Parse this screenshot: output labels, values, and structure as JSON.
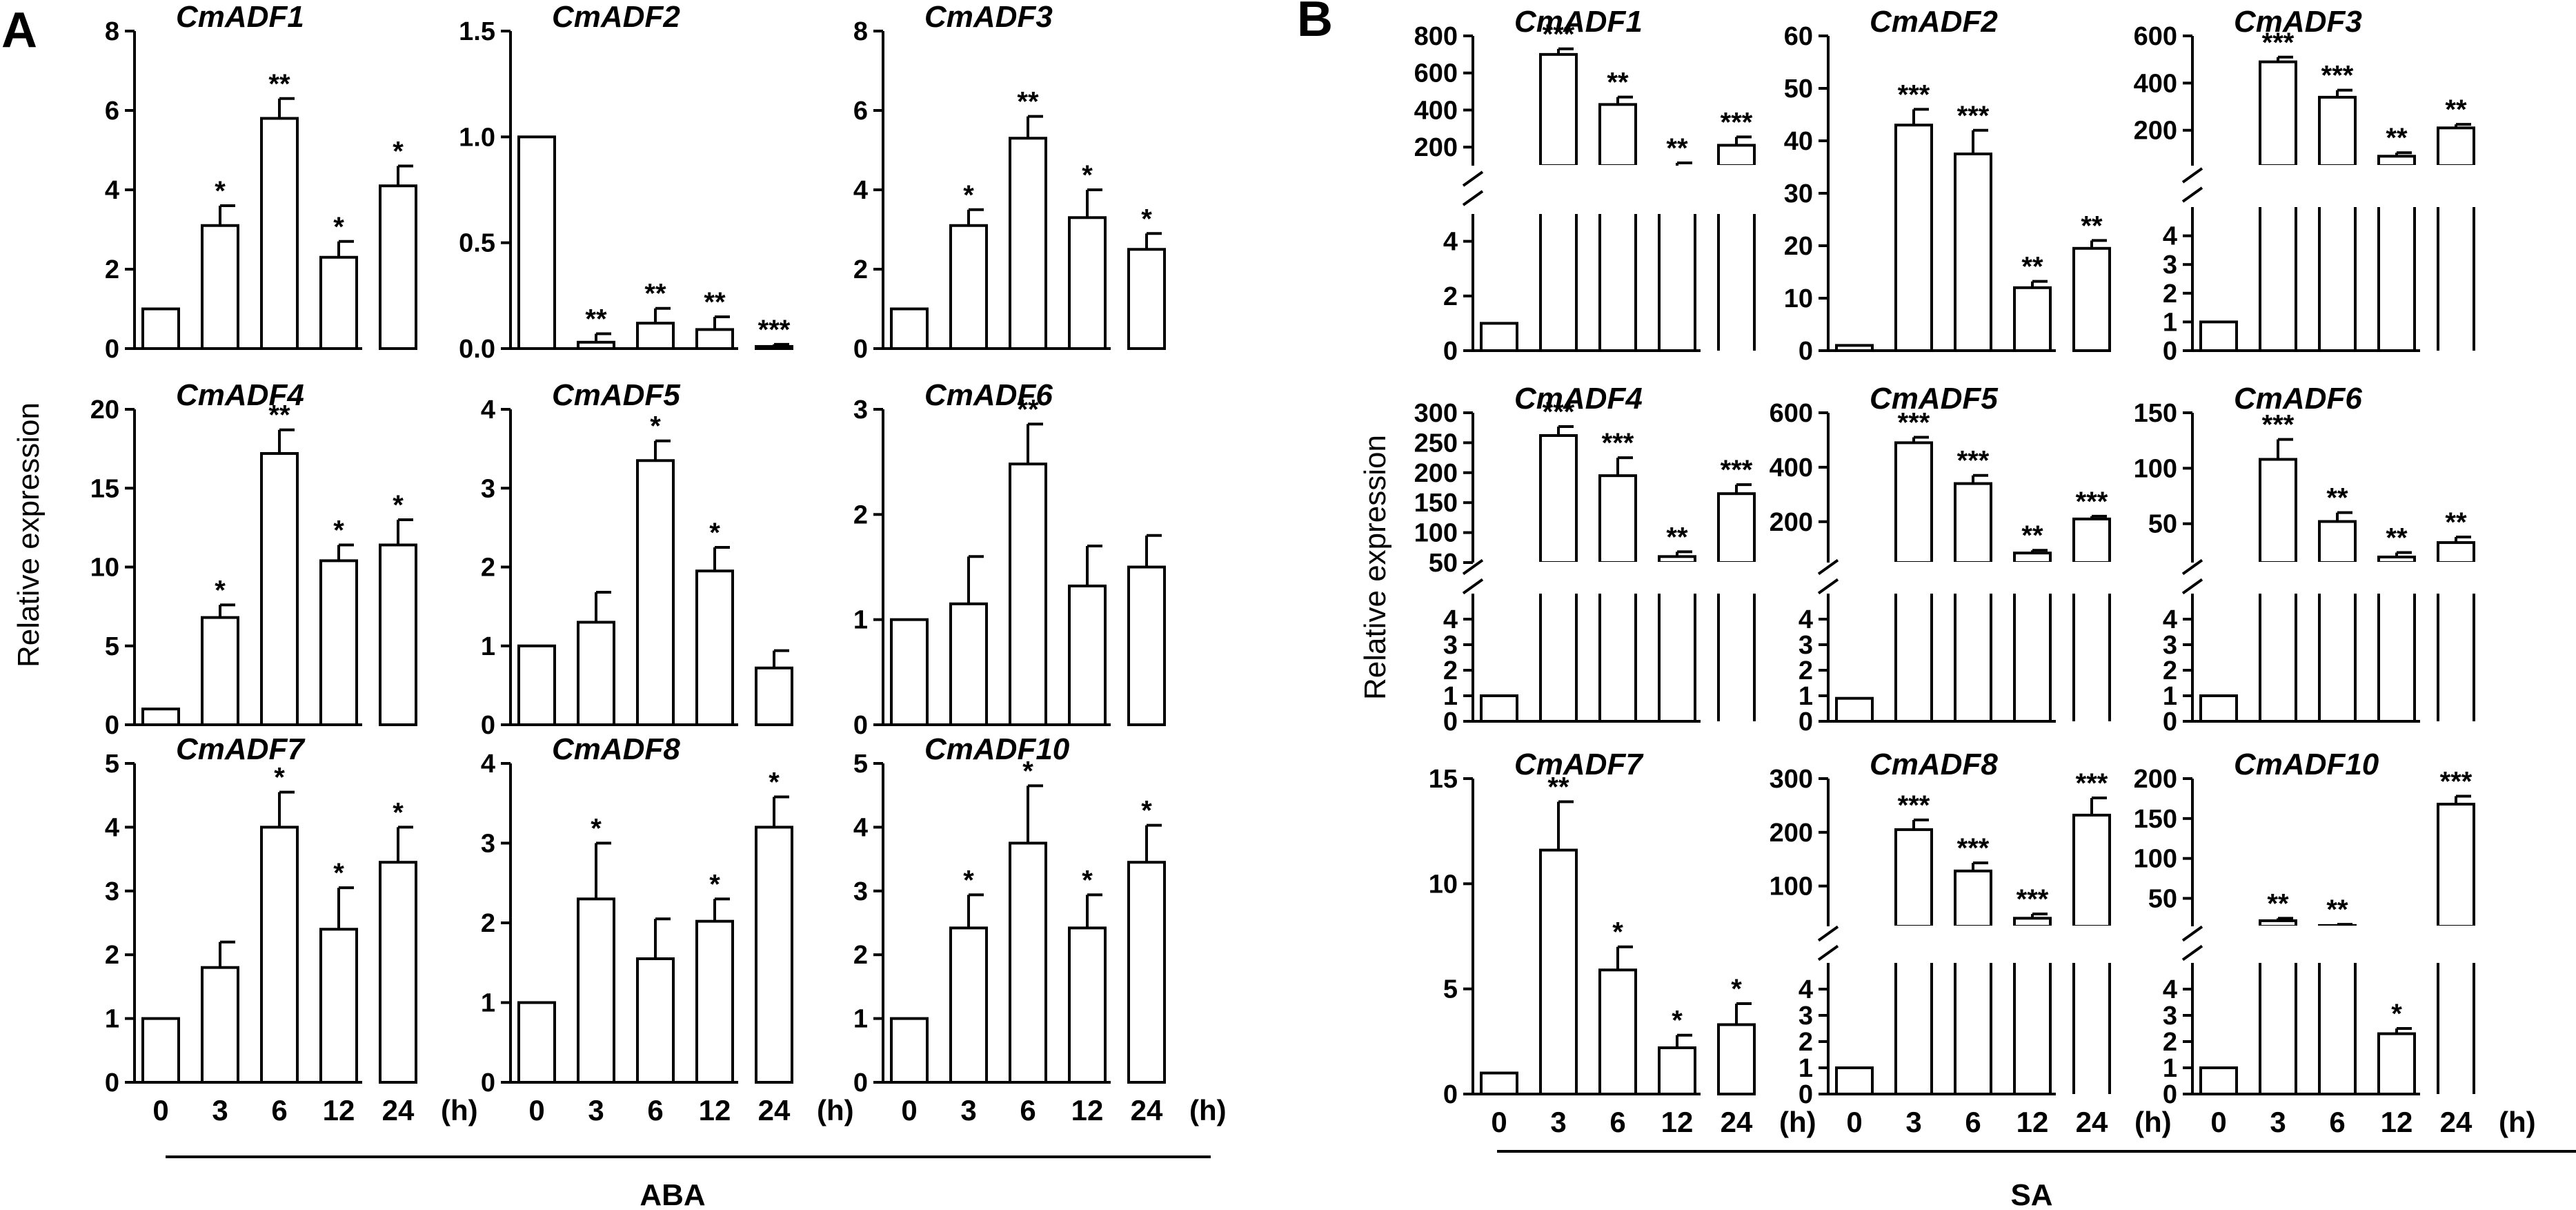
{
  "panel_labels": {
    "a": "A",
    "b": "B"
  },
  "y_label": "Relative expression",
  "x_unit": "(h)",
  "group_labels": {
    "a": "ABA",
    "b": "SA"
  },
  "colors": {
    "ink": "#000000",
    "bar_fill": "#ffffff",
    "background": "#ffffff"
  },
  "chart_data": [
    {
      "panel": "A",
      "title": "CmADF1",
      "type": "bar",
      "categories": [
        "0",
        "3",
        "6",
        "12",
        "24"
      ],
      "values": [
        1,
        3.1,
        5.8,
        2.3,
        4.1
      ],
      "errors": [
        0,
        0.5,
        0.5,
        0.4,
        0.5
      ],
      "significance": [
        "",
        "*",
        "**",
        "*",
        "*"
      ],
      "ylim": [
        0,
        8
      ],
      "yticks": [
        0,
        2,
        4,
        6,
        8
      ],
      "ytick_labels": [
        "0",
        "2",
        "4",
        "6",
        "8"
      ],
      "show_xticks": false
    },
    {
      "panel": "A",
      "title": "CmADF2",
      "type": "bar",
      "categories": [
        "0",
        "3",
        "6",
        "12",
        "24"
      ],
      "values": [
        1,
        0.03,
        0.12,
        0.09,
        0.01
      ],
      "errors": [
        0,
        0.04,
        0.07,
        0.06,
        0.01
      ],
      "significance": [
        "",
        "**",
        "**",
        "**",
        "***"
      ],
      "ylim": [
        0,
        1.5
      ],
      "yticks": [
        0,
        0.5,
        1.0,
        1.5
      ],
      "ytick_labels": [
        "0.0",
        "0.5",
        "1.0",
        "1.5"
      ],
      "show_xticks": false
    },
    {
      "panel": "A",
      "title": "CmADF3",
      "type": "bar",
      "categories": [
        "0",
        "3",
        "6",
        "12",
        "24"
      ],
      "values": [
        1,
        3.1,
        5.3,
        3.3,
        2.5
      ],
      "errors": [
        0,
        0.4,
        0.55,
        0.7,
        0.4
      ],
      "significance": [
        "",
        "*",
        "**",
        "*",
        "*"
      ],
      "ylim": [
        0,
        8
      ],
      "yticks": [
        0,
        2,
        4,
        6,
        8
      ],
      "ytick_labels": [
        "0",
        "2",
        "4",
        "6",
        "8"
      ],
      "show_xticks": false
    },
    {
      "panel": "A",
      "title": "CmADF4",
      "type": "bar",
      "categories": [
        "0",
        "3",
        "6",
        "12",
        "24"
      ],
      "values": [
        1,
        6.8,
        17.2,
        10.4,
        11.4
      ],
      "errors": [
        0,
        0.8,
        1.5,
        1.0,
        1.6
      ],
      "significance": [
        "",
        "*",
        "**",
        "*",
        "*"
      ],
      "ylim": [
        0,
        20
      ],
      "yticks": [
        0,
        5,
        10,
        15,
        20
      ],
      "ytick_labels": [
        "0",
        "5",
        "10",
        "15",
        "20"
      ],
      "show_xticks": false
    },
    {
      "panel": "A",
      "title": "CmADF5",
      "type": "bar",
      "categories": [
        "0",
        "3",
        "6",
        "12",
        "24"
      ],
      "values": [
        1,
        1.3,
        3.35,
        1.95,
        0.72
      ],
      "errors": [
        0,
        0.38,
        0.25,
        0.3,
        0.22
      ],
      "significance": [
        "",
        "",
        "*",
        "*",
        ""
      ],
      "ylim": [
        0,
        4
      ],
      "yticks": [
        0,
        1,
        2,
        3,
        4
      ],
      "ytick_labels": [
        "0",
        "1",
        "2",
        "3",
        "4"
      ],
      "show_xticks": false
    },
    {
      "panel": "A",
      "title": "CmADF6",
      "type": "bar",
      "categories": [
        "0",
        "3",
        "6",
        "12",
        "24"
      ],
      "values": [
        1,
        1.15,
        2.48,
        1.32,
        1.5
      ],
      "errors": [
        0,
        0.45,
        0.38,
        0.38,
        0.3
      ],
      "significance": [
        "",
        "",
        "**",
        "",
        ""
      ],
      "ylim": [
        0,
        3
      ],
      "yticks": [
        0,
        1,
        2,
        3
      ],
      "ytick_labels": [
        "0",
        "1",
        "2",
        "3"
      ],
      "show_xticks": false
    },
    {
      "panel": "A",
      "title": "CmADF7",
      "type": "bar",
      "categories": [
        "0",
        "3",
        "6",
        "12",
        "24"
      ],
      "values": [
        1,
        1.8,
        4.0,
        2.4,
        3.45
      ],
      "errors": [
        0,
        0.4,
        0.55,
        0.65,
        0.55
      ],
      "significance": [
        "",
        "",
        "*",
        "*",
        "*"
      ],
      "ylim": [
        0,
        5
      ],
      "yticks": [
        0,
        1,
        2,
        3,
        4,
        5
      ],
      "ytick_labels": [
        "0",
        "1",
        "2",
        "3",
        "4",
        "5"
      ],
      "show_xticks": true
    },
    {
      "panel": "A",
      "title": "CmADF8",
      "type": "bar",
      "categories": [
        "0",
        "3",
        "6",
        "12",
        "24"
      ],
      "values": [
        1,
        2.3,
        1.55,
        2.02,
        3.2
      ],
      "errors": [
        0,
        0.7,
        0.5,
        0.28,
        0.38
      ],
      "significance": [
        "",
        "*",
        "",
        "*",
        "*"
      ],
      "ylim": [
        0,
        4
      ],
      "yticks": [
        0,
        1,
        2,
        3,
        4
      ],
      "ytick_labels": [
        "0",
        "1",
        "2",
        "3",
        "4"
      ],
      "show_xticks": true
    },
    {
      "panel": "A",
      "title": "CmADF10",
      "type": "bar",
      "categories": [
        "0",
        "3",
        "6",
        "12",
        "24"
      ],
      "values": [
        1,
        2.42,
        3.75,
        2.42,
        3.45
      ],
      "errors": [
        0,
        0.52,
        0.9,
        0.52,
        0.58
      ],
      "significance": [
        "",
        "*",
        "*",
        "*",
        "*"
      ],
      "ylim": [
        0,
        5
      ],
      "yticks": [
        0,
        1,
        2,
        3,
        4,
        5
      ],
      "ytick_labels": [
        "0",
        "1",
        "2",
        "3",
        "4",
        "5"
      ],
      "show_xticks": true
    },
    {
      "panel": "B",
      "title": "CmADF1",
      "type": "bar",
      "broken_axis": true,
      "categories": [
        "0",
        "3",
        "6",
        "12",
        "24"
      ],
      "values": [
        1,
        700,
        430,
        90,
        210
      ],
      "errors": [
        0,
        30,
        40,
        15,
        45
      ],
      "significance": [
        "",
        "***",
        "**",
        "**",
        "***"
      ],
      "ylim_low": [
        0,
        5
      ],
      "ylim_high": [
        100,
        800
      ],
      "yticks_low": [
        0,
        2,
        4
      ],
      "yticks_high": [
        200,
        400,
        600,
        800
      ],
      "ytick_labels_low": [
        "0",
        "2",
        "4"
      ],
      "ytick_labels_high": [
        "200",
        "400",
        "600",
        "800"
      ],
      "show_xticks": false
    },
    {
      "panel": "B",
      "title": "CmADF2",
      "type": "bar",
      "categories": [
        "0",
        "3",
        "6",
        "12",
        "24"
      ],
      "values": [
        1,
        43,
        37.5,
        12,
        19.5
      ],
      "errors": [
        0,
        3,
        4.5,
        1.2,
        1.5
      ],
      "significance": [
        "",
        "***",
        "***",
        "**",
        "**"
      ],
      "ylim": [
        0,
        60
      ],
      "yticks": [
        0,
        10,
        20,
        30,
        40,
        50,
        60
      ],
      "ytick_labels": [
        "0",
        "10",
        "20",
        "30",
        "40",
        "50",
        "60"
      ],
      "show_xticks": false
    },
    {
      "panel": "B",
      "title": "CmADF3",
      "type": "bar",
      "broken_axis": true,
      "categories": [
        "0",
        "3",
        "6",
        "12",
        "24"
      ],
      "values": [
        1,
        490,
        340,
        90,
        210
      ],
      "errors": [
        0,
        20,
        30,
        15,
        15
      ],
      "significance": [
        "",
        "***",
        "***",
        "**",
        "**"
      ],
      "ylim_low": [
        0,
        5
      ],
      "ylim_high": [
        50,
        600
      ],
      "yticks_low": [
        0,
        1,
        2,
        3,
        4
      ],
      "yticks_high": [
        200,
        400,
        600
      ],
      "ytick_labels_low": [
        "0",
        "1",
        "2",
        "3",
        "4"
      ],
      "ytick_labels_high": [
        "200",
        "400",
        "600"
      ],
      "show_xticks": false
    },
    {
      "panel": "B",
      "title": "CmADF4",
      "type": "bar",
      "broken_axis": true,
      "categories": [
        "0",
        "3",
        "6",
        "12",
        "24"
      ],
      "values": [
        1,
        262,
        195,
        60,
        165
      ],
      "errors": [
        0,
        15,
        30,
        8,
        15
      ],
      "significance": [
        "",
        "***",
        "***",
        "**",
        "***"
      ],
      "ylim_low": [
        0,
        5
      ],
      "ylim_high": [
        50,
        300
      ],
      "yticks_low": [
        0,
        1,
        2,
        3,
        4
      ],
      "yticks_high": [
        50,
        100,
        150,
        200,
        250,
        300
      ],
      "ytick_labels_low": [
        "0",
        "1",
        "2",
        "3",
        "4"
      ],
      "ytick_labels_high": [
        "50",
        "100",
        "150",
        "200",
        "250",
        "300"
      ],
      "show_xticks": false
    },
    {
      "panel": "B",
      "title": "CmADF5",
      "type": "bar",
      "broken_axis": true,
      "categories": [
        "0",
        "3",
        "6",
        "12",
        "24"
      ],
      "values": [
        0.9,
        490,
        340,
        85,
        210
      ],
      "errors": [
        0,
        20,
        30,
        10,
        10
      ],
      "significance": [
        "",
        "***",
        "***",
        "**",
        "***"
      ],
      "ylim_low": [
        0,
        5
      ],
      "ylim_high": [
        50,
        600
      ],
      "yticks_low": [
        0,
        1,
        2,
        3,
        4
      ],
      "yticks_high": [
        200,
        400,
        600
      ],
      "ytick_labels_low": [
        "0",
        "1",
        "2",
        "3",
        "4"
      ],
      "ytick_labels_high": [
        "200",
        "400",
        "600"
      ],
      "show_xticks": false
    },
    {
      "panel": "B",
      "title": "CmADF6",
      "type": "bar",
      "broken_axis": true,
      "categories": [
        "0",
        "3",
        "6",
        "12",
        "24"
      ],
      "values": [
        1,
        108,
        52,
        20,
        33
      ],
      "errors": [
        0,
        18,
        8,
        4,
        5
      ],
      "significance": [
        "",
        "***",
        "**",
        "**",
        "**"
      ],
      "ylim_low": [
        0,
        5
      ],
      "ylim_high": [
        15,
        150
      ],
      "yticks_low": [
        0,
        1,
        2,
        3,
        4
      ],
      "yticks_high": [
        50,
        100,
        150
      ],
      "ytick_labels_low": [
        "0",
        "1",
        "2",
        "3",
        "4"
      ],
      "ytick_labels_high": [
        "50",
        "100",
        "150"
      ],
      "show_xticks": false
    },
    {
      "panel": "B",
      "title": "CmADF7",
      "type": "bar",
      "categories": [
        "0",
        "3",
        "6",
        "12",
        "24"
      ],
      "values": [
        1,
        11.6,
        5.9,
        2.2,
        3.3
      ],
      "errors": [
        0,
        2.3,
        1.1,
        0.6,
        1.0
      ],
      "significance": [
        "",
        "**",
        "*",
        "*",
        "*"
      ],
      "ylim": [
        0,
        15
      ],
      "yticks": [
        0,
        5,
        10,
        15
      ],
      "ytick_labels": [
        "0",
        "5",
        "10",
        "15"
      ],
      "show_xticks": true
    },
    {
      "panel": "B",
      "title": "CmADF8",
      "type": "bar",
      "broken_axis": true,
      "categories": [
        "0",
        "3",
        "6",
        "12",
        "24"
      ],
      "values": [
        1,
        205,
        128,
        40,
        232
      ],
      "errors": [
        0,
        18,
        15,
        8,
        32
      ],
      "significance": [
        "",
        "***",
        "***",
        "***",
        "***"
      ],
      "ylim_low": [
        0,
        5
      ],
      "ylim_high": [
        25,
        300
      ],
      "yticks_low": [
        0,
        1,
        2,
        3,
        4
      ],
      "yticks_high": [
        100,
        200,
        300
      ],
      "ytick_labels_low": [
        "0",
        "1",
        "2",
        "3",
        "4"
      ],
      "ytick_labels_high": [
        "100",
        "200",
        "300"
      ],
      "show_xticks": true
    },
    {
      "panel": "B",
      "title": "CmADF10",
      "type": "bar",
      "broken_axis": true,
      "categories": [
        "0",
        "3",
        "6",
        "12",
        "24"
      ],
      "values": [
        1,
        22,
        16,
        2.3,
        168
      ],
      "errors": [
        0,
        3,
        1.5,
        0.2,
        10
      ],
      "significance": [
        "",
        "**",
        "**",
        "*",
        "***"
      ],
      "low_only": [
        false,
        false,
        false,
        true,
        false
      ],
      "ylim_low": [
        0,
        5
      ],
      "ylim_high": [
        15,
        200
      ],
      "yticks_low": [
        0,
        1,
        2,
        3,
        4
      ],
      "yticks_high": [
        50,
        100,
        150,
        200
      ],
      "ytick_labels_low": [
        "0",
        "1",
        "2",
        "3",
        "4"
      ],
      "ytick_labels_high": [
        "50",
        "100",
        "150",
        "200"
      ],
      "show_xticks": true
    }
  ]
}
